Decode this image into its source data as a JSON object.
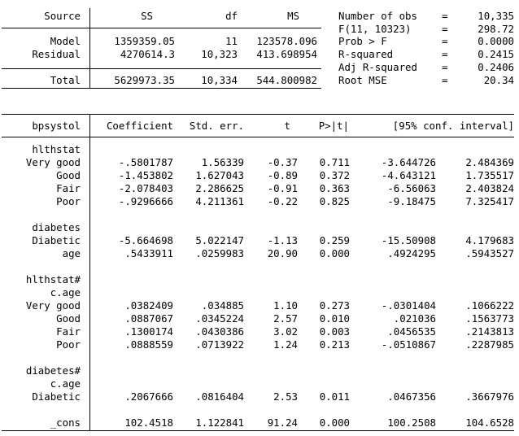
{
  "anova": {
    "headers": {
      "source": "Source",
      "ss": "SS",
      "df": "df",
      "ms": "MS"
    },
    "rows": [
      {
        "source": "Model",
        "ss": "1359359.05",
        "df": "11",
        "ms": "123578.096"
      },
      {
        "source": "Residual",
        "ss": "4270614.3",
        "df": "10,323",
        "ms": "413.698954"
      }
    ],
    "total": {
      "source": "Total",
      "ss": "5629973.35",
      "df": "10,334",
      "ms": "544.800982"
    }
  },
  "fit_stats": [
    {
      "label": "Number of obs",
      "eq": "=",
      "value": "10,335"
    },
    {
      "label": "F(11, 10323)",
      "eq": "=",
      "value": "298.72"
    },
    {
      "label": "Prob > F",
      "eq": "=",
      "value": "0.0000"
    },
    {
      "label": "R-squared",
      "eq": "=",
      "value": "0.2415"
    },
    {
      "label": "Adj R-squared",
      "eq": "=",
      "value": "0.2406"
    },
    {
      "label": "Root MSE",
      "eq": "=",
      "value": "20.34"
    }
  ],
  "coef_table": {
    "headers": {
      "depvar": "bpsystol",
      "coef": "Coefficient",
      "se": "Std. err.",
      "t": "t",
      "p": "P>|t|",
      "ci": "[95% conf. interval]"
    },
    "rows": [
      {
        "label": "hlthstat",
        "type": "group"
      },
      {
        "label": "Very good",
        "coef": "-.5801787",
        "se": "1.56339",
        "t": "-0.37",
        "p": "0.711",
        "lo": "-3.644726",
        "hi": "2.484369"
      },
      {
        "label": "Good",
        "coef": "-1.453802",
        "se": "1.627043",
        "t": "-0.89",
        "p": "0.372",
        "lo": "-4.643121",
        "hi": "1.735517"
      },
      {
        "label": "Fair",
        "coef": "-2.078403",
        "se": "2.286625",
        "t": "-0.91",
        "p": "0.363",
        "lo": "-6.56063",
        "hi": "2.403824"
      },
      {
        "label": "Poor",
        "coef": "-.9296666",
        "se": "4.211361",
        "t": "-0.22",
        "p": "0.825",
        "lo": "-9.18475",
        "hi": "7.325417"
      },
      {
        "label": "",
        "type": "blank"
      },
      {
        "label": "diabetes",
        "type": "group"
      },
      {
        "label": "Diabetic",
        "coef": "-5.664698",
        "se": "5.022147",
        "t": "-1.13",
        "p": "0.259",
        "lo": "-15.50908",
        "hi": "4.179683"
      },
      {
        "label": "age",
        "coef": ".5433911",
        "se": ".0259983",
        "t": "20.90",
        "p": "0.000",
        "lo": ".4924295",
        "hi": ".5943527"
      },
      {
        "label": "",
        "type": "blank"
      },
      {
        "label": "hlthstat#",
        "type": "group"
      },
      {
        "label": "c.age",
        "type": "group"
      },
      {
        "label": "Very good",
        "coef": ".0382409",
        "se": ".034885",
        "t": "1.10",
        "p": "0.273",
        "lo": "-.0301404",
        "hi": ".1066222"
      },
      {
        "label": "Good",
        "coef": ".0887067",
        "se": ".0345224",
        "t": "2.57",
        "p": "0.010",
        "lo": ".021036",
        "hi": ".1563773"
      },
      {
        "label": "Fair",
        "coef": ".1300174",
        "se": ".0430386",
        "t": "3.02",
        "p": "0.003",
        "lo": ".0456535",
        "hi": ".2143813"
      },
      {
        "label": "Poor",
        "coef": ".0888559",
        "se": ".0713922",
        "t": "1.24",
        "p": "0.213",
        "lo": "-.0510867",
        "hi": ".2287985"
      },
      {
        "label": "",
        "type": "blank"
      },
      {
        "label": "diabetes#",
        "type": "group"
      },
      {
        "label": "c.age",
        "type": "group"
      },
      {
        "label": "Diabetic",
        "coef": ".2067666",
        "se": ".0816404",
        "t": "2.53",
        "p": "0.011",
        "lo": ".0467356",
        "hi": ".3667976"
      },
      {
        "label": "",
        "type": "blank"
      },
      {
        "label": "_cons",
        "coef": "102.4518",
        "se": "1.122841",
        "t": "91.24",
        "p": "0.000",
        "lo": "100.2508",
        "hi": "104.6528"
      }
    ]
  }
}
